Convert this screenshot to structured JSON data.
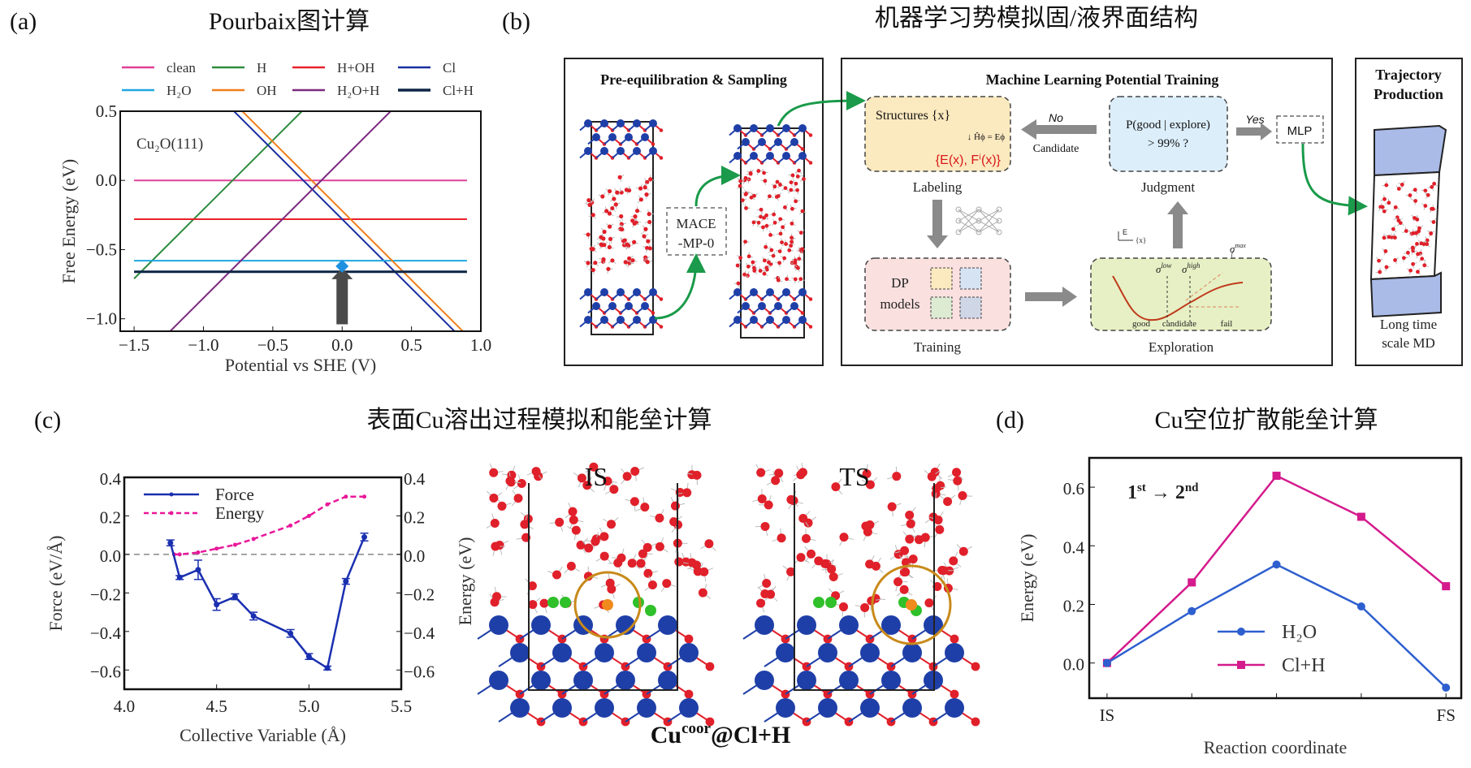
{
  "panel_labels": {
    "a": "(a)",
    "b": "(b)",
    "c": "(c)",
    "d": "(d)"
  },
  "titles": {
    "a": "Pourbaix图计算",
    "b": "机器学习势模拟固/液界面结构",
    "c": "表面Cu溶出过程模拟和能垒计算",
    "d": "Cu空位扩散能垒计算"
  },
  "diagram": {
    "pre_box": {
      "title": "Pre-equilibration & Sampling",
      "mace_line1": "MACE",
      "mace_line2": "-MP-0"
    },
    "mlp_box": {
      "title": "Machine Learning Potential Training",
      "labeling": {
        "structures": "Structures {x}",
        "equation": "↓ Ĥϕ = Eϕ",
        "outputs": "{E(x), Fⁱ(x)}",
        "caption": "Labeling"
      },
      "training": {
        "line1": "DP",
        "line2": "models",
        "caption": "Training"
      },
      "exploration": {
        "sigma_low": "σ",
        "sigma_low_sup": "low",
        "sigma_high": "σ",
        "sigma_high_sup": "high",
        "sigma_max": "σ",
        "sigma_max_sup": "max",
        "sigma_max_sub": "f",
        "axis_e": "E",
        "axis_x": "{x}",
        "good": "good",
        "candidate": "candidate",
        "fail": "fail",
        "caption": "Exploration"
      },
      "judgment": {
        "line1": "P(good | explore)",
        "line2": "> 99% ?",
        "caption": "Judgment"
      },
      "no_label": "No",
      "candidate_label": "Candidate",
      "yes_label": "Yes",
      "mlp": "MLP"
    },
    "trajectory_box": {
      "title1": "Trajectory",
      "title2": "Production",
      "caption1": "Long time",
      "caption2": "scale MD"
    },
    "colors": {
      "arrow_green": "#1a9a4a",
      "arrow_grey": "#888888",
      "labeling_fill": "#fbe9bf",
      "judgment_fill": "#dceefa",
      "training_fill": "#fbe0e0",
      "exploration_fill": "#e6f0c4",
      "cu": "#1f3fa8",
      "o": "#e0202a"
    }
  },
  "snapshots": {
    "is_label": "IS",
    "ts_label": "TS",
    "ylabel": "Energy (eV)",
    "caption_main": "Cu",
    "caption_sup": "coor",
    "caption_rest": "@Cl+H"
  },
  "chart_data": [
    {
      "type": "line",
      "title": "Pourbaix图计算",
      "xlabel": "Potential vs SHE (V)",
      "ylabel": "Free Energy (eV)",
      "xlim": [
        -1.6,
        1.0
      ],
      "ylim": [
        -1.09,
        0.5
      ],
      "xticks": [
        -1.5,
        -1.0,
        -0.5,
        0.0,
        0.5,
        1.0
      ],
      "xtick_labels": [
        "−1.5",
        "−1.0",
        "−0.5",
        "0.0",
        "0.5",
        "1.0"
      ],
      "yticks": [
        0.5,
        0.0,
        -0.5,
        -1.0
      ],
      "ytick_labels": [
        "0.5",
        "0.0",
        "−0.5",
        "−1.0"
      ],
      "annotation": "Cu₂O(111)",
      "legend": "top-outside",
      "highlight": {
        "x": 0.0,
        "y": -0.62,
        "arrow_from_y": -1.04
      },
      "series": [
        {
          "name": "clean",
          "color": "#e0409a",
          "x": [
            -1.5,
            0.9
          ],
          "y": [
            0.0,
            0.0
          ]
        },
        {
          "name": "H",
          "color": "#2e8b3e",
          "x": [
            -1.5,
            0.9
          ],
          "y": [
            -0.71,
            1.69
          ]
        },
        {
          "name": "H+OH",
          "color": "#e8222a",
          "x": [
            -1.5,
            0.9
          ],
          "y": [
            -0.28,
            -0.28
          ]
        },
        {
          "name": "Cl",
          "color": "#1a2fa0",
          "x": [
            -1.5,
            0.9
          ],
          "y": [
            1.22,
            -1.18
          ]
        },
        {
          "name": "H₂O",
          "color": "#1ea8e0",
          "x": [
            -1.5,
            0.9
          ],
          "y": [
            -0.58,
            -0.58
          ]
        },
        {
          "name": "OH",
          "color": "#f07f1c",
          "x": [
            -1.5,
            0.9
          ],
          "y": [
            1.28,
            -1.12
          ]
        },
        {
          "name": "H₂O+H",
          "color": "#7b2a7e",
          "x": [
            -1.5,
            0.9
          ],
          "y": [
            -1.35,
            1.05
          ]
        },
        {
          "name": "Cl+H",
          "color": "#0d2545",
          "x": [
            -1.5,
            0.9
          ],
          "y": [
            -0.66,
            -0.66
          ]
        }
      ]
    },
    {
      "type": "line",
      "xlabel": "Collective Variable (Å)",
      "ylabel": "Force (eV/Å)",
      "xlim": [
        4.0,
        5.5
      ],
      "ylim": [
        -0.7,
        0.4
      ],
      "xticks": [
        4.0,
        4.5,
        5.0,
        5.5
      ],
      "xtick_labels": [
        "4.0",
        "4.5",
        "5.0",
        "5.5"
      ],
      "yticks": [
        0.4,
        0.2,
        0.0,
        -0.2,
        -0.4,
        -0.6
      ],
      "ytick_labels": [
        "0.4",
        "0.2",
        "0.0",
        "−0.2",
        "−0.4",
        "−0.6"
      ],
      "right_ytick_labels": [
        "0.4",
        "0.2",
        "0.0",
        "−0.2",
        "−0.4",
        "−0.6"
      ],
      "legend": "top-left",
      "series": [
        {
          "name": "Force",
          "color": "#1a2fb0",
          "style": "solid",
          "x": [
            4.25,
            4.3,
            4.4,
            4.5,
            4.6,
            4.7,
            4.9,
            5.0,
            5.1,
            5.2,
            5.3
          ],
          "y": [
            0.06,
            -0.12,
            -0.08,
            -0.26,
            -0.22,
            -0.32,
            -0.41,
            -0.53,
            -0.59,
            -0.14,
            0.09
          ],
          "err": [
            0.015,
            0.01,
            0.05,
            0.03,
            0.015,
            0.02,
            0.02,
            0.015,
            0.01,
            0.015,
            0.02
          ]
        },
        {
          "name": "Energy",
          "color": "#e8189a",
          "style": "dashed",
          "x": [
            4.27,
            4.3,
            4.4,
            4.5,
            4.6,
            4.7,
            4.9,
            5.0,
            5.1,
            5.2,
            5.3
          ],
          "y": [
            0.0,
            0.0,
            0.01,
            0.03,
            0.05,
            0.08,
            0.15,
            0.2,
            0.26,
            0.3,
            0.3
          ]
        }
      ]
    },
    {
      "type": "line",
      "xlabel": "Reaction coordinate",
      "ylabel": "Energy (eV)",
      "categories": [
        "IS",
        "",
        "",
        "",
        "FS"
      ],
      "ylim": [
        -0.12,
        0.7
      ],
      "yticks": [
        0.6,
        0.4,
        0.2,
        0.0
      ],
      "ytick_labels": [
        "0.6",
        "0.4",
        "0.2",
        "0.0"
      ],
      "annotation": {
        "a": "1",
        "a_sup": "st",
        "arrow": " → ",
        "b": "2",
        "b_sup": "nd"
      },
      "legend": "lower-center",
      "series": [
        {
          "name": "H₂O",
          "color": "#2e5fcf",
          "marker": "circle",
          "y": [
            0.0,
            0.177,
            0.336,
            0.193,
            -0.084
          ]
        },
        {
          "name": "Cl+H",
          "color": "#d41a8c",
          "marker": "square",
          "y": [
            0.0,
            0.275,
            0.639,
            0.499,
            0.262
          ]
        }
      ]
    }
  ]
}
